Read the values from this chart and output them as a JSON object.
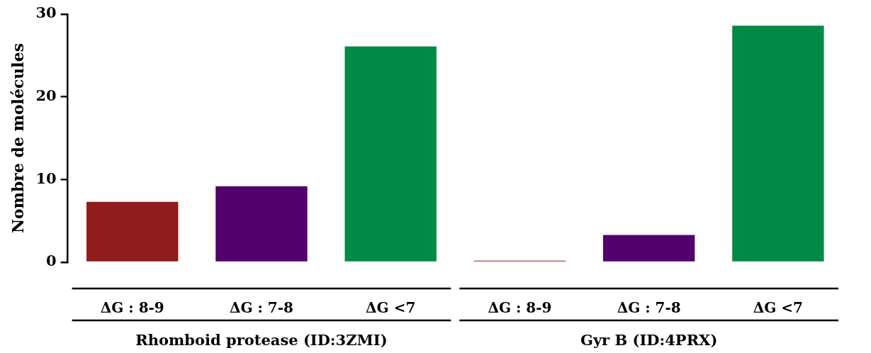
{
  "chart_data": {
    "type": "bar",
    "ylabel": "Nombre de molécules",
    "categories": [
      "ΔG : 8-9",
      "ΔG : 7-8",
      "ΔG <7",
      "ΔG : 8-9",
      "ΔG : 7-8",
      "ΔG <7"
    ],
    "values": [
      7.3,
      9.2,
      26.1,
      0.2,
      3.3,
      28.6
    ],
    "colors": [
      "#901c1c",
      "#52006e",
      "#008a45",
      "#901c1c",
      "#52006e",
      "#008a45"
    ],
    "ylim": [
      0,
      30
    ],
    "yticks": [
      0,
      10,
      20,
      30
    ],
    "grid": false,
    "legend": false,
    "annotations": [
      "Rhomboid protease (ID:3ZMI)",
      "Gyr B (ID:4PRX)"
    ]
  }
}
